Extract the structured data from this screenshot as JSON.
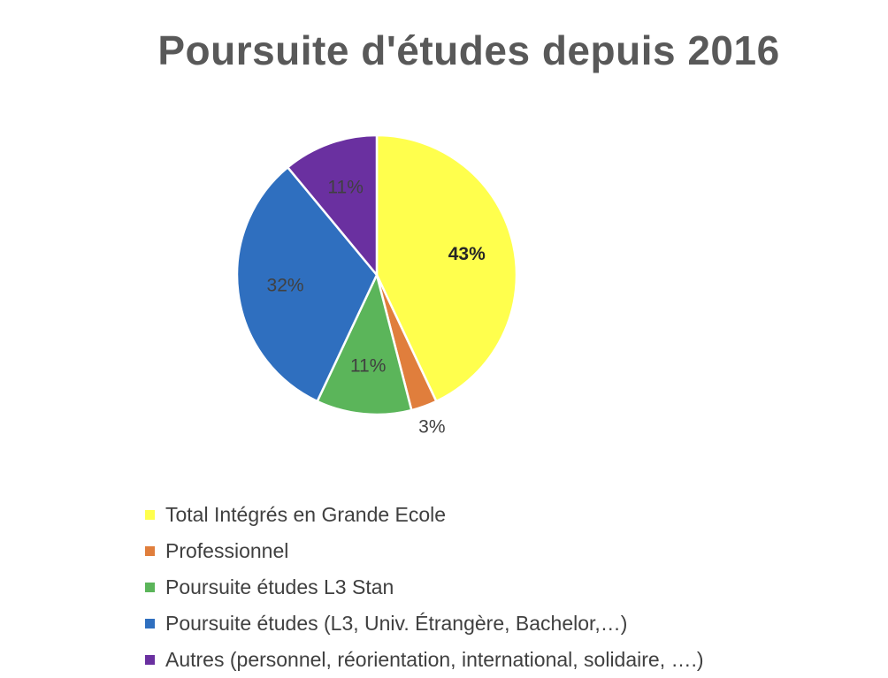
{
  "chart_data": {
    "type": "pie",
    "title": "Poursuite d'études depuis 2016",
    "legend_position": "bottom",
    "slices": [
      {
        "name": "Total Intégrés en Grande Ecole",
        "value": 43,
        "label": "43%",
        "color": "#FFFF4D",
        "bold": true
      },
      {
        "name": "Professionnel",
        "value": 3,
        "label": "3%",
        "color": "#E07E3C",
        "bold": false
      },
      {
        "name": "Poursuite études L3 Stan",
        "value": 11,
        "label": "11%",
        "color": "#5BB55A",
        "bold": false
      },
      {
        "name": "Poursuite études (L3, Univ. Étrangère, Bachelor,…)",
        "value": 32,
        "label": "32%",
        "color": "#2F6FBF",
        "bold": false
      },
      {
        "name": "Autres (personnel, réorientation, international, solidaire, ….)",
        "value": 11,
        "label": "11%",
        "color": "#6A30A0",
        "bold": false
      }
    ]
  }
}
